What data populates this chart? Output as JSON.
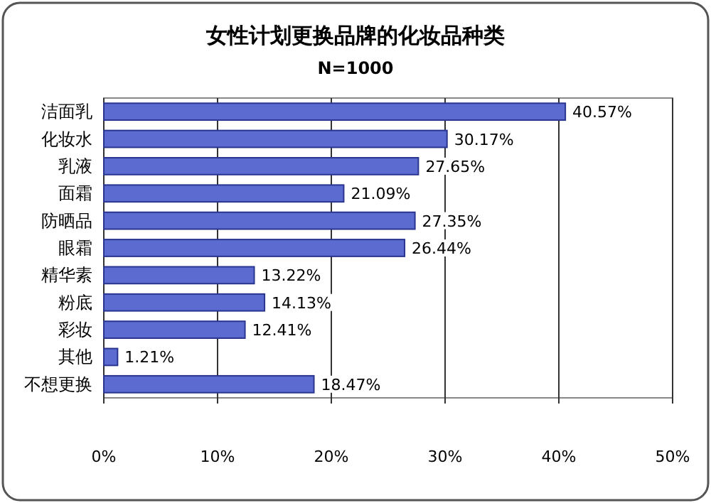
{
  "chart_data": {
    "type": "bar",
    "orientation": "horizontal",
    "title": "女性计划更换品牌的化妆品种类",
    "subtitle": "N=1000",
    "categories": [
      "洁面乳",
      "化妆水",
      "乳液",
      "面霜",
      "防晒品",
      "眼霜",
      "精华素",
      "粉底",
      "彩妆",
      "其他",
      "不想更换"
    ],
    "values": [
      40.57,
      30.17,
      27.65,
      21.09,
      27.35,
      26.44,
      13.22,
      14.13,
      12.41,
      1.21,
      18.47
    ],
    "value_labels": [
      "40.57%",
      "30.17%",
      "27.65%",
      "21.09%",
      "27.35%",
      "26.44%",
      "13.22%",
      "14.13%",
      "12.41%",
      "1.21%",
      "18.47%"
    ],
    "color": "#5b6bd0",
    "xlim": [
      0,
      50
    ],
    "xticks": [
      {
        "value": 0,
        "label": "0%"
      },
      {
        "value": 10,
        "label": "10%"
      },
      {
        "value": 20,
        "label": "20%"
      },
      {
        "value": 30,
        "label": "30%"
      },
      {
        "value": 40,
        "label": "40%"
      },
      {
        "value": 50,
        "label": "50%"
      }
    ],
    "grid": "x"
  }
}
